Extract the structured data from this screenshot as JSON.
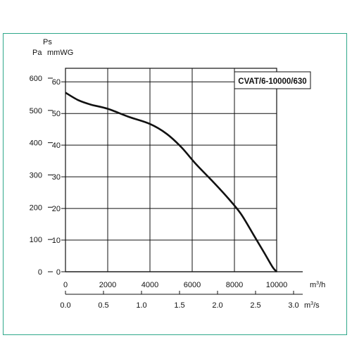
{
  "colors": {
    "frame": "#2fa88a",
    "grid": "#111111",
    "curve": "#111111"
  },
  "chart_data": {
    "type": "line",
    "model_label": "CVAT/6-10000/630",
    "pressure_header": {
      "ps": "Ps",
      "pa": "Pa",
      "mmwg": "mmWG"
    },
    "y_pa": {
      "range": [
        0,
        600
      ],
      "ticks": [
        "0",
        "100",
        "200",
        "300",
        "400",
        "500",
        "600"
      ]
    },
    "y_mmwg": {
      "range": [
        0,
        61.2
      ],
      "ticks": [
        "0",
        "10",
        "20",
        "30",
        "40",
        "50",
        "60"
      ]
    },
    "x_m3h": {
      "range": [
        0,
        10000
      ],
      "ticks": [
        "0",
        "2000",
        "4000",
        "6000",
        "8000",
        "10000"
      ],
      "unit": "m3/h"
    },
    "x_m3s": {
      "range": [
        0,
        2.7778
      ],
      "ticks": [
        "0.0",
        "0.5",
        "1.0",
        "1.5",
        "2.0",
        "2.5",
        "3.0"
      ],
      "unit": "m3/s"
    },
    "grid": true,
    "series": [
      {
        "x": [
          0,
          600,
          1200,
          2000,
          3000,
          4000,
          4800,
          5500,
          6200,
          7000,
          7700,
          8300,
          8900,
          9400,
          9800,
          10000
        ],
        "y": [
          555,
          532,
          518,
          505,
          480,
          458,
          427,
          385,
          332,
          278,
          228,
          180,
          115,
          60,
          15,
          0
        ]
      }
    ]
  }
}
